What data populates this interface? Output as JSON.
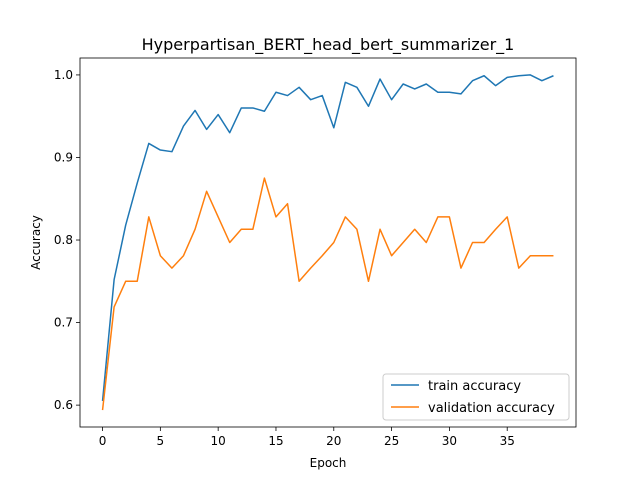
{
  "chart_data": {
    "type": "line",
    "title": "Hyperpartisan_BERT_head_bert_summarizer_1",
    "xlabel": "Epoch",
    "ylabel": "Accuracy",
    "xlim": [
      -1.95,
      40.95
    ],
    "ylim": [
      0.5735,
      1.0205
    ],
    "xticks": [
      0,
      5,
      10,
      15,
      20,
      25,
      30,
      35
    ],
    "yticks": [
      0.6,
      0.7,
      0.8,
      0.9,
      1.0
    ],
    "xtick_labels": [
      "0",
      "5",
      "10",
      "15",
      "20",
      "25",
      "30",
      "35"
    ],
    "ytick_labels": [
      "0.6",
      "0.7",
      "0.8",
      "0.9",
      "1.0"
    ],
    "grid": false,
    "legend_position": "lower-right",
    "x": [
      0,
      1,
      2,
      3,
      4,
      5,
      6,
      7,
      8,
      9,
      10,
      11,
      12,
      13,
      14,
      15,
      16,
      17,
      18,
      19,
      20,
      21,
      22,
      23,
      24,
      25,
      26,
      27,
      28,
      29,
      30,
      31,
      32,
      33,
      34,
      35,
      36,
      37,
      38,
      39
    ],
    "series": [
      {
        "name": "train accuracy",
        "color": "#1f77b4",
        "values": [
          0.605,
          0.752,
          0.818,
          0.869,
          0.917,
          0.909,
          0.907,
          0.938,
          0.957,
          0.934,
          0.952,
          0.93,
          0.96,
          0.96,
          0.956,
          0.979,
          0.975,
          0.985,
          0.97,
          0.975,
          0.936,
          0.991,
          0.985,
          0.962,
          0.995,
          0.97,
          0.989,
          0.983,
          0.989,
          0.979,
          0.979,
          0.977,
          0.993,
          0.999,
          0.987,
          0.997,
          0.999,
          1.0,
          0.993,
          0.999
        ]
      },
      {
        "name": "validation accuracy",
        "color": "#ff7f0e",
        "values": [
          0.594,
          0.719,
          0.75,
          0.75,
          0.828,
          0.781,
          0.766,
          0.781,
          0.813,
          0.859,
          0.828,
          0.797,
          0.813,
          0.813,
          0.875,
          0.828,
          0.844,
          0.75,
          0.766,
          0.781,
          0.797,
          0.828,
          0.813,
          0.75,
          0.813,
          0.781,
          0.797,
          0.813,
          0.797,
          0.828,
          0.828,
          0.766,
          0.797,
          0.797,
          0.813,
          0.828,
          0.766,
          0.781,
          0.781,
          0.781
        ]
      }
    ]
  }
}
